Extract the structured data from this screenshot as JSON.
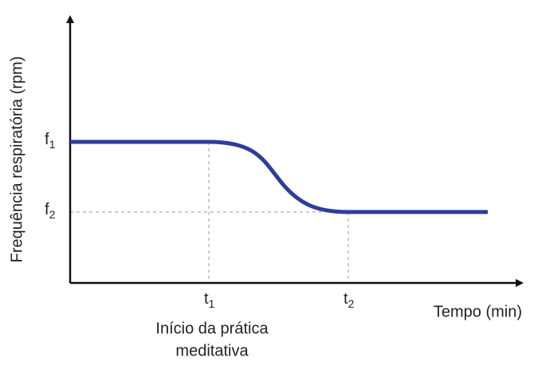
{
  "y_axis": {
    "label": "Frequência respiratória (rpm)",
    "ticks": [
      {
        "base": "f",
        "sub": "1"
      },
      {
        "base": "f",
        "sub": "2"
      }
    ]
  },
  "x_axis": {
    "label": "Tempo (min)",
    "ticks": [
      {
        "base": "t",
        "sub": "1"
      },
      {
        "base": "t",
        "sub": "2"
      }
    ]
  },
  "annotation": {
    "lines": [
      "Início da prática",
      "meditativa"
    ]
  }
}
